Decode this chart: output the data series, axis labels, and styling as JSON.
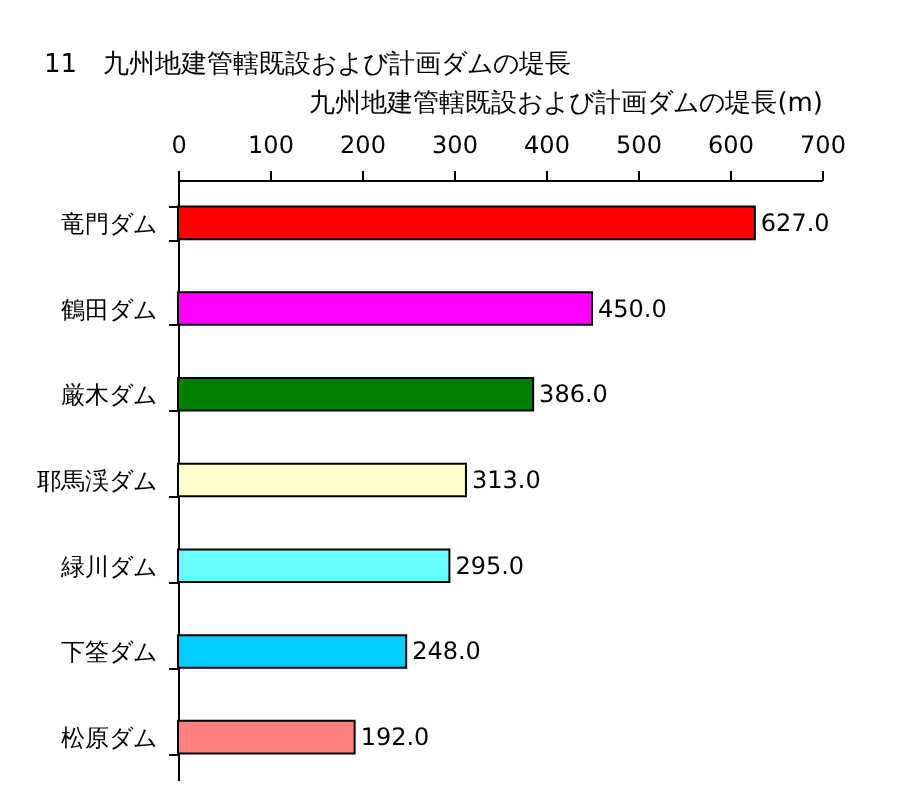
{
  "chart_data": {
    "type": "bar",
    "orientation": "horizontal",
    "title": "11　九州地建管轄既設および計画ダムの堤長",
    "xlabel": "九州地建管轄既設および計画ダムの堤長(m)",
    "categories": [
      "竜門ダム",
      "鶴田ダム",
      "厳木ダム",
      "耶馬渓ダム",
      "緑川ダム",
      "下筌ダム",
      "松原ダム"
    ],
    "values": [
      627,
      450,
      386,
      313,
      295,
      248,
      192
    ],
    "colors": [
      "#ff0000",
      "#ff00ff",
      "#008000",
      "#ffffcc",
      "#66ffff",
      "#00ccff",
      "#ff8080"
    ],
    "value_labels": [
      "627.0",
      "450.0",
      "386.0",
      "313.0",
      "295.0",
      "248.0",
      "192.0"
    ],
    "xlim": [
      0,
      700
    ],
    "xticks": [
      0,
      100,
      200,
      300,
      400,
      500,
      600,
      700
    ]
  }
}
